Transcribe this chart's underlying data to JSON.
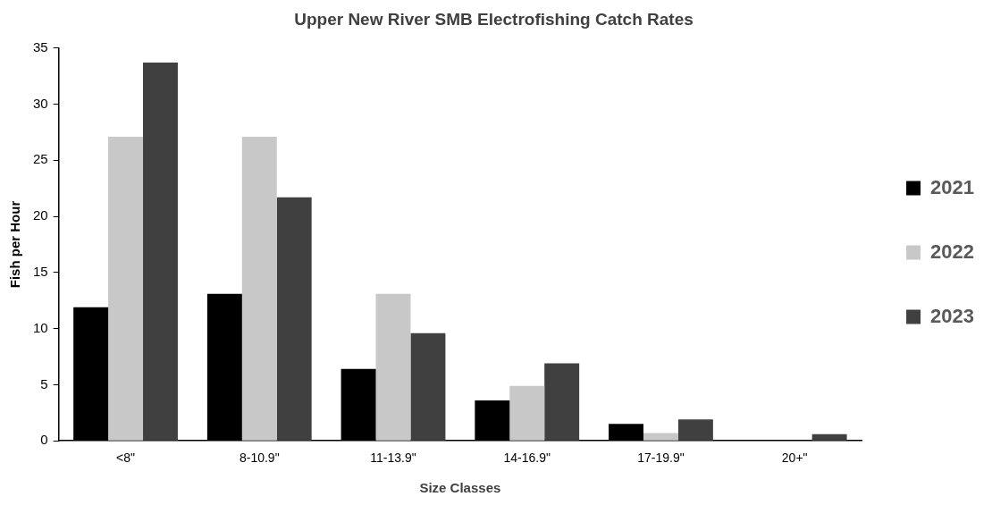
{
  "chart_data": {
    "type": "bar",
    "title": "Upper New River SMB Electrofishing Catch Rates",
    "xlabel": "Size Classes",
    "ylabel": "Fish per Hour",
    "categories": [
      "<8\"",
      "8-10.9\"",
      "11-13.9\"",
      "14-16.9\"",
      "17-19.9\"",
      "20+\""
    ],
    "series": [
      {
        "name": "2021",
        "color": "#000000",
        "values": [
          11.9,
          13.1,
          6.4,
          3.6,
          1.5,
          0.1
        ]
      },
      {
        "name": "2022",
        "color": "#c8c8c8",
        "values": [
          27.1,
          27.1,
          13.1,
          4.9,
          0.7,
          0
        ]
      },
      {
        "name": "2023",
        "color": "#404040",
        "values": [
          33.7,
          21.7,
          9.6,
          6.9,
          1.9,
          0.6
        ]
      }
    ],
    "ylim": [
      0,
      35
    ],
    "yticks": [
      0,
      5,
      10,
      15,
      20,
      25,
      30,
      35
    ],
    "grid": false,
    "legend": "right"
  }
}
